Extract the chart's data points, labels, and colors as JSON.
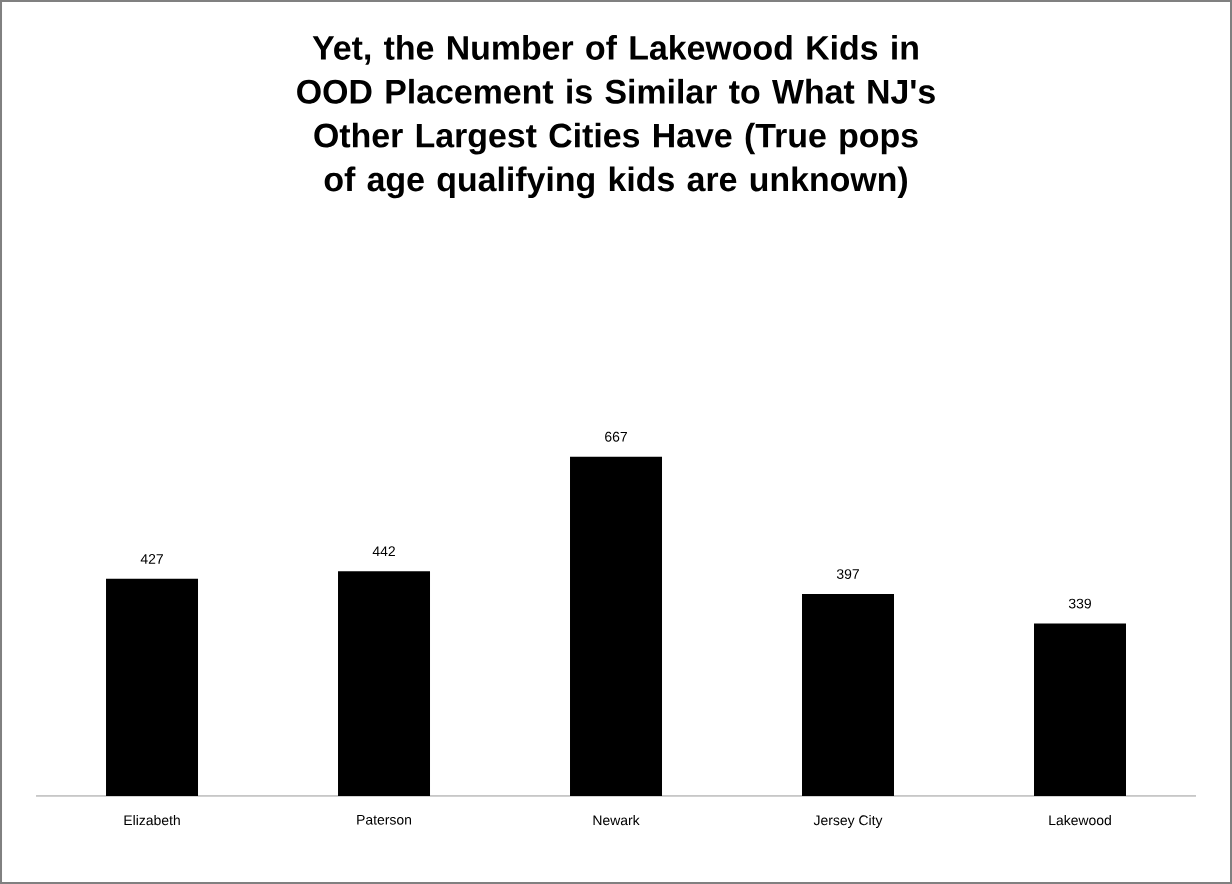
{
  "chart_data": {
    "type": "bar",
    "title": "Yet, the Number of Lakewood Kids in OOD Placement is Similar to What NJ's Other Largest Cities Have (True pops of age qualifying kids are unknown)",
    "categories": [
      "Elizabeth",
      "Paterson",
      "Newark",
      "Jersey City",
      "Lakewood"
    ],
    "values": [
      427,
      442,
      667,
      397,
      339
    ],
    "color": "#000000",
    "data_labels": true
  }
}
